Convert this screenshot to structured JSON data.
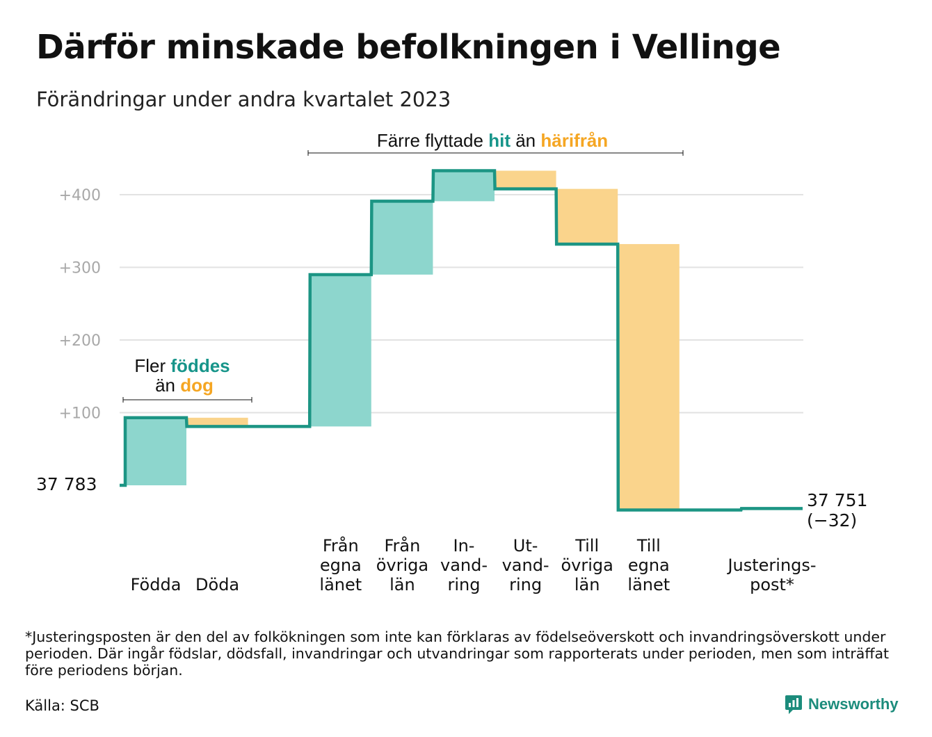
{
  "title": "Därför minskade befolkningen i Vellinge",
  "subtitle": "Förändringar under andra kvartalet 2023",
  "colors": {
    "increase_fill": "#8dd6cd",
    "decrease_fill": "#fad48c",
    "line": "#1c9584",
    "accent_teal": "#17958a",
    "accent_orange": "#f5a623",
    "grid": "#e2e2e2"
  },
  "annotations": {
    "births": {
      "pre1": "Fler",
      "hl1": "föddes",
      "pre2": "än",
      "hl2": "dog"
    },
    "migration": {
      "pre1": "Färre flyttade",
      "hl1": "hit",
      "pre2": "än",
      "hl2": "härifrån"
    }
  },
  "chart_data": {
    "type": "waterfall",
    "start_label": "37  783",
    "start_value": 37783,
    "end_label": "37 751",
    "end_change_label": "(−32)",
    "end_value": 37751,
    "y_ticks": [
      "+100",
      "+200",
      "+300",
      "+400"
    ],
    "y_tick_values": [
      100,
      200,
      300,
      400
    ],
    "y_axis_unit": "change relative to 37 783",
    "ylim": [
      -50,
      450
    ],
    "categories": [
      {
        "label": [
          "Födda"
        ],
        "delta": 93
      },
      {
        "label": [
          "Döda"
        ],
        "delta": -12
      },
      {
        "label": [],
        "delta": 0
      },
      {
        "label": [
          "Från",
          "egna",
          "länet"
        ],
        "delta": 209
      },
      {
        "label": [
          "Från",
          "övriga",
          "län"
        ],
        "delta": 101
      },
      {
        "label": [
          "In-",
          "vand-",
          "ring"
        ],
        "delta": 42
      },
      {
        "label": [
          "Ut-",
          "vand-",
          "ring"
        ],
        "delta": -25
      },
      {
        "label": [
          "Till",
          "övriga",
          "län"
        ],
        "delta": -76
      },
      {
        "label": [
          "Till",
          "egna",
          "länet"
        ],
        "delta": -366
      },
      {
        "label": [],
        "delta": 0
      },
      {
        "label": [
          "Justerings-",
          "post*"
        ],
        "delta": 2
      }
    ]
  },
  "footnote": "*Justeringsposten är den del av folkökningen som inte kan förklaras av födelseöverskott och invandringsöverskott under perioden. Där ingår födslar, dödsfall, invandringar och utvandringar som rapporterats under perioden, men som inträffat före periodens början.",
  "source": "Källa: SCB",
  "brand": "Newsworthy"
}
